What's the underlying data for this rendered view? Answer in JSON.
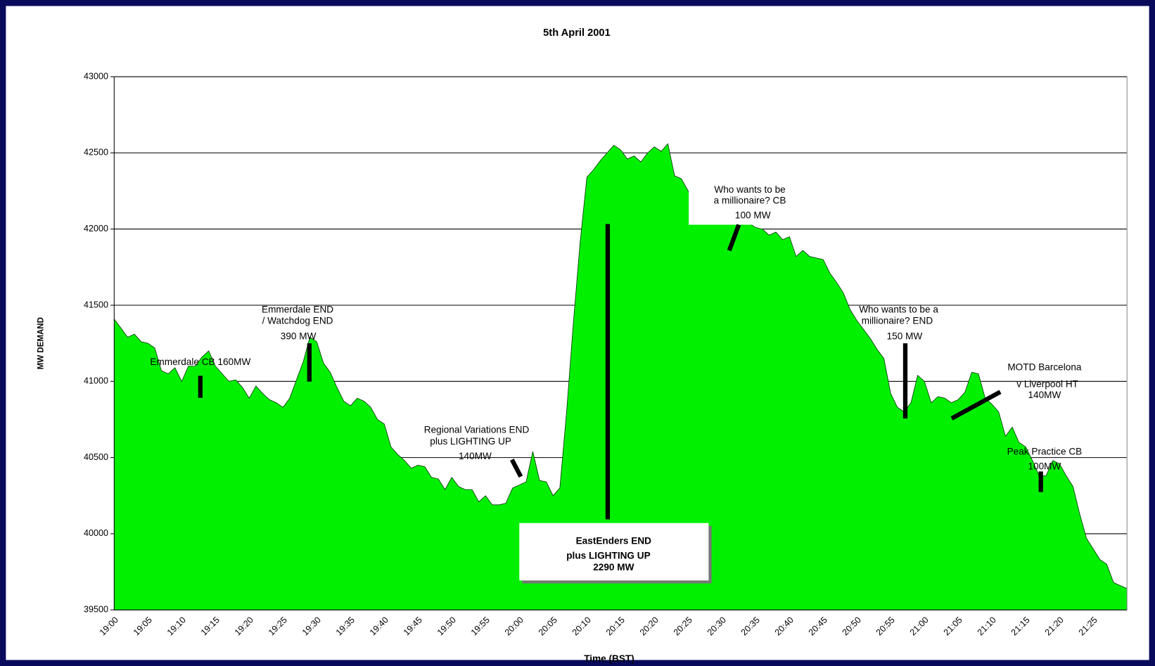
{
  "chart_data": {
    "type": "area",
    "title": "5th April 2001",
    "x_label": "Time (BST)",
    "y_label": "MW DEMAND",
    "categories": [
      "19:00",
      null,
      null,
      null,
      null,
      "19:05",
      null,
      null,
      null,
      null,
      "19:10",
      null,
      null,
      null,
      null,
      "19:15",
      null,
      null,
      null,
      null,
      "19:20",
      null,
      null,
      null,
      null,
      "19:25",
      null,
      null,
      null,
      null,
      "19:30",
      null,
      null,
      null,
      null,
      "19:35",
      null,
      null,
      null,
      null,
      "19:40",
      null,
      null,
      null,
      null,
      "19:45",
      null,
      null,
      null,
      null,
      "19:50",
      null,
      null,
      null,
      null,
      "19:55",
      null,
      null,
      null,
      null,
      "20:00",
      null,
      null,
      null,
      null,
      "20:05",
      null,
      null,
      null,
      null,
      "20:10",
      null,
      null,
      null,
      null,
      "20:15",
      null,
      null,
      null,
      null,
      "20:20",
      null,
      null,
      null,
      null,
      "20:25",
      null,
      null,
      null,
      null,
      "20:30",
      null,
      null,
      null,
      null,
      "20:35",
      null,
      null,
      null,
      null,
      "20:40",
      null,
      null,
      null,
      null,
      "20:45",
      null,
      null,
      null,
      null,
      "20:50",
      null,
      null,
      null,
      null,
      "20:55",
      null,
      null,
      null,
      null,
      "21:00",
      null,
      null,
      null,
      null,
      "21:05",
      null,
      null,
      null,
      null,
      "21:10",
      null,
      null,
      null,
      null,
      "21:15",
      null,
      null,
      null,
      null,
      "21:20",
      null,
      null,
      null,
      null,
      "21:25",
      null,
      null,
      null,
      null,
      null
    ],
    "values": [
      41410,
      41350,
      41290,
      41310,
      41260,
      41250,
      41220,
      41070,
      41050,
      41090,
      41000,
      41100,
      41100,
      41160,
      41200,
      41100,
      41050,
      41000,
      41010,
      40960,
      40890,
      40970,
      40920,
      40880,
      40860,
      40830,
      40890,
      41010,
      41130,
      41290,
      41260,
      41120,
      41060,
      40960,
      40870,
      40840,
      40890,
      40870,
      40830,
      40750,
      40720,
      40570,
      40520,
      40480,
      40430,
      40450,
      40440,
      40370,
      40360,
      40290,
      40370,
      40310,
      40290,
      40290,
      40210,
      40250,
      40190,
      40190,
      40200,
      40300,
      40320,
      40340,
      40540,
      40350,
      40340,
      40250,
      40300,
      40800,
      41380,
      41910,
      42340,
      42390,
      42450,
      42500,
      42550,
      42520,
      42460,
      42480,
      42440,
      42500,
      42540,
      42510,
      42560,
      42350,
      42330,
      42250,
      42180,
      42140,
      42110,
      42090,
      42080,
      42060,
      42060,
      42050,
      42040,
      42010,
      42000,
      41960,
      41980,
      41930,
      41950,
      41820,
      41860,
      41820,
      41810,
      41800,
      41710,
      41650,
      41580,
      41470,
      41400,
      41340,
      41280,
      41210,
      41150,
      40920,
      40830,
      40800,
      40860,
      41040,
      41000,
      40860,
      40900,
      40890,
      40860,
      40880,
      40930,
      41060,
      41050,
      40890,
      40850,
      40800,
      40640,
      40700,
      40600,
      40570,
      40480,
      40380,
      40380,
      40480,
      40460,
      40380,
      40310,
      40130,
      39970,
      39900,
      39830,
      39800,
      39680,
      39660,
      39640
    ],
    "color": "#00f000",
    "ylim": [
      39500,
      43000
    ],
    "yticks": [
      39500,
      40000,
      40500,
      41000,
      41500,
      42000,
      42500,
      43000
    ],
    "grid": true,
    "annotations": [
      [
        "Emmerdale CB 160MW"
      ],
      [
        "Emmerdale END",
        "/ Watchdog END",
        "390 MW"
      ],
      [
        "Regional Variations END",
        "plus LIGHTING UP",
        "140MW"
      ],
      [
        "EastEnders END",
        "plus LIGHTING UP",
        "2290 MW"
      ],
      [
        "Who wants to be",
        "a millionaire? CB",
        "100 MW"
      ],
      [
        "Who wants to be a",
        "millionaire? END",
        "150 MW"
      ],
      [
        "MOTD Barcelona",
        "v Liverpool HT",
        "140MW"
      ],
      [
        "Peak Practice CB",
        "100MW"
      ]
    ]
  }
}
